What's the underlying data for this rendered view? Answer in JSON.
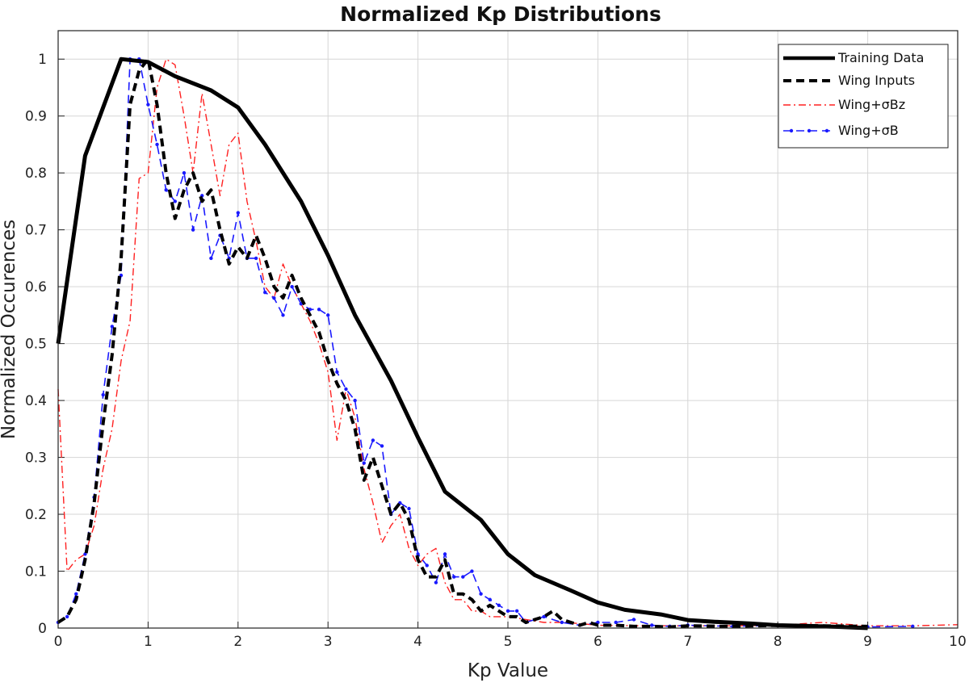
{
  "chart_data": {
    "type": "line",
    "title": "Normalized Kp Distributions",
    "xlabel": "Kp Value",
    "ylabel": "Normalized Occurences",
    "xlim": [
      0,
      10
    ],
    "ylim": [
      0,
      1.05
    ],
    "xticks": [
      "0",
      "1",
      "2",
      "3",
      "4",
      "5",
      "6",
      "7",
      "8",
      "9",
      "10"
    ],
    "yticks": [
      "0",
      "0.1",
      "0.2",
      "0.3",
      "0.4",
      "0.5",
      "0.6",
      "0.7",
      "0.8",
      "0.9",
      "1"
    ],
    "grid": true,
    "legend_position": "top-right",
    "series": [
      {
        "name": "Training Data",
        "color": "#000000",
        "style": "solid-thick",
        "x": [
          0,
          0.3,
          0.7,
          1.0,
          1.3,
          1.7,
          2.0,
          2.3,
          2.7,
          3.0,
          3.3,
          3.7,
          4.0,
          4.3,
          4.7,
          5.0,
          5.3,
          5.7,
          6.0,
          6.3,
          6.7,
          7.0,
          7.3,
          7.7,
          8.0,
          8.3,
          8.7,
          9.0
        ],
        "y": [
          0.5,
          0.83,
          1.0,
          0.995,
          0.97,
          0.945,
          0.915,
          0.85,
          0.75,
          0.655,
          0.55,
          0.435,
          0.335,
          0.24,
          0.19,
          0.13,
          0.093,
          0.066,
          0.045,
          0.032,
          0.024,
          0.014,
          0.011,
          0.008,
          0.005,
          0.004,
          0.002,
          0.0
        ]
      },
      {
        "name": "Wing Inputs",
        "color": "#000000",
        "style": "dashed",
        "x": [
          0,
          0.1,
          0.2,
          0.3,
          0.4,
          0.5,
          0.6,
          0.7,
          0.8,
          0.9,
          1.0,
          1.1,
          1.2,
          1.3,
          1.4,
          1.5,
          1.6,
          1.7,
          1.8,
          1.9,
          2.0,
          2.1,
          2.2,
          2.3,
          2.4,
          2.5,
          2.6,
          2.7,
          2.8,
          2.9,
          3.0,
          3.1,
          3.2,
          3.3,
          3.4,
          3.5,
          3.6,
          3.7,
          3.8,
          3.9,
          4.0,
          4.1,
          4.2,
          4.3,
          4.4,
          4.5,
          4.6,
          4.7,
          4.8,
          4.9,
          5.0,
          5.1,
          5.2,
          5.3,
          5.4,
          5.5,
          5.6,
          5.7,
          5.8,
          5.9,
          6.0,
          6.2,
          6.4,
          6.6,
          6.8,
          7.0,
          7.5,
          8.0,
          8.5,
          9.0
        ],
        "y": [
          0.01,
          0.02,
          0.05,
          0.12,
          0.22,
          0.36,
          0.48,
          0.65,
          0.92,
          0.98,
          1.0,
          0.92,
          0.8,
          0.72,
          0.77,
          0.8,
          0.75,
          0.77,
          0.7,
          0.64,
          0.67,
          0.65,
          0.69,
          0.65,
          0.6,
          0.58,
          0.62,
          0.58,
          0.55,
          0.52,
          0.47,
          0.43,
          0.4,
          0.35,
          0.26,
          0.3,
          0.25,
          0.2,
          0.22,
          0.19,
          0.12,
          0.09,
          0.09,
          0.12,
          0.06,
          0.06,
          0.05,
          0.03,
          0.04,
          0.03,
          0.02,
          0.02,
          0.01,
          0.015,
          0.02,
          0.03,
          0.015,
          0.01,
          0.005,
          0.01,
          0.005,
          0.005,
          0.003,
          0.003,
          0.002,
          0.004,
          0.003,
          0.005,
          0.004,
          0.003
        ]
      },
      {
        "name": "Wing+σBz",
        "color": "#ff2020",
        "style": "dash-dot",
        "x": [
          0,
          0.1,
          0.2,
          0.3,
          0.4,
          0.5,
          0.6,
          0.7,
          0.8,
          0.9,
          1.0,
          1.1,
          1.2,
          1.3,
          1.4,
          1.5,
          1.6,
          1.7,
          1.8,
          1.9,
          2.0,
          2.1,
          2.2,
          2.3,
          2.4,
          2.5,
          2.6,
          2.7,
          2.8,
          2.9,
          3.0,
          3.1,
          3.2,
          3.3,
          3.4,
          3.5,
          3.6,
          3.7,
          3.8,
          3.9,
          4.0,
          4.1,
          4.2,
          4.3,
          4.4,
          4.5,
          4.6,
          4.7,
          4.8,
          4.9,
          5.0,
          5.2,
          5.4,
          5.6,
          5.8,
          6.0,
          6.5,
          7.0,
          7.5,
          8.0,
          8.5,
          9.0,
          9.5,
          10.0
        ],
        "y": [
          0.42,
          0.1,
          0.12,
          0.13,
          0.18,
          0.28,
          0.35,
          0.47,
          0.54,
          0.79,
          0.8,
          0.95,
          1.0,
          0.99,
          0.9,
          0.8,
          0.94,
          0.85,
          0.76,
          0.85,
          0.87,
          0.75,
          0.68,
          0.6,
          0.58,
          0.64,
          0.6,
          0.57,
          0.54,
          0.5,
          0.45,
          0.33,
          0.42,
          0.37,
          0.28,
          0.22,
          0.15,
          0.18,
          0.2,
          0.14,
          0.11,
          0.13,
          0.14,
          0.08,
          0.05,
          0.05,
          0.03,
          0.03,
          0.02,
          0.02,
          0.02,
          0.015,
          0.01,
          0.01,
          0.008,
          0.005,
          0.004,
          0.004,
          0.004,
          0.005,
          0.01,
          0.004,
          0.004,
          0.006
        ]
      },
      {
        "name": "Wing+σB",
        "color": "#1a1aff",
        "style": "dashed-dots",
        "x": [
          0,
          0.1,
          0.2,
          0.3,
          0.4,
          0.5,
          0.6,
          0.7,
          0.8,
          0.9,
          1.0,
          1.1,
          1.2,
          1.3,
          1.4,
          1.5,
          1.6,
          1.7,
          1.8,
          1.9,
          2.0,
          2.1,
          2.2,
          2.3,
          2.4,
          2.5,
          2.6,
          2.7,
          2.8,
          2.9,
          3.0,
          3.1,
          3.2,
          3.3,
          3.4,
          3.5,
          3.6,
          3.7,
          3.8,
          3.9,
          4.0,
          4.1,
          4.2,
          4.3,
          4.4,
          4.5,
          4.6,
          4.7,
          4.8,
          4.9,
          5.0,
          5.1,
          5.2,
          5.4,
          5.6,
          5.8,
          6.0,
          6.2,
          6.4,
          6.6,
          6.8,
          7.0,
          7.5,
          8.0,
          8.5,
          9.0,
          9.5
        ],
        "y": [
          0.01,
          0.02,
          0.06,
          0.13,
          0.23,
          0.41,
          0.53,
          0.62,
          1.0,
          1.0,
          0.92,
          0.85,
          0.77,
          0.75,
          0.8,
          0.7,
          0.76,
          0.65,
          0.69,
          0.65,
          0.73,
          0.65,
          0.65,
          0.59,
          0.58,
          0.55,
          0.6,
          0.57,
          0.56,
          0.56,
          0.55,
          0.45,
          0.42,
          0.4,
          0.29,
          0.33,
          0.32,
          0.2,
          0.22,
          0.21,
          0.13,
          0.11,
          0.08,
          0.13,
          0.09,
          0.09,
          0.1,
          0.06,
          0.05,
          0.04,
          0.03,
          0.03,
          0.01,
          0.02,
          0.01,
          0.005,
          0.01,
          0.01,
          0.015,
          0.005,
          0.003,
          0.005,
          0.003,
          0.005,
          0.003,
          0.002,
          0.003
        ]
      }
    ]
  }
}
